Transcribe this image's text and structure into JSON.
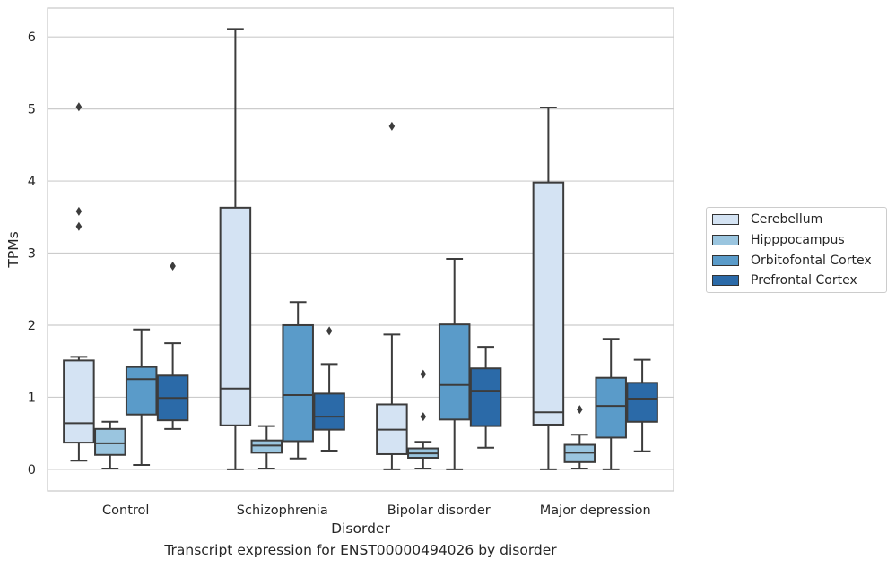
{
  "caption": "Transcript expression for ENST00000494026 by disorder",
  "chart_data": {
    "type": "box",
    "xlabel": "Disorder",
    "ylabel": "TPMs",
    "ylim": [
      -0.3,
      6.4
    ],
    "yticks": [
      0,
      1,
      2,
      3,
      4,
      5,
      6
    ],
    "grid": "horizontal",
    "legend_position": "right",
    "categories": [
      "Control",
      "Schizophrenia",
      "Bipolar disorder",
      "Major depression"
    ],
    "series": [
      {
        "name": "Cerebellum",
        "color": "#d4e3f3",
        "boxes": [
          {
            "whisker_low": 0.12,
            "q1": 0.37,
            "median": 0.64,
            "q3": 1.51,
            "whisker_high": 1.56,
            "outliers": [
              3.37,
              3.58,
              5.03
            ]
          },
          {
            "whisker_low": 0.0,
            "q1": 0.61,
            "median": 1.12,
            "q3": 3.63,
            "whisker_high": 6.11,
            "outliers": []
          },
          {
            "whisker_low": 0.0,
            "q1": 0.21,
            "median": 0.55,
            "q3": 0.9,
            "whisker_high": 1.87,
            "outliers": [
              4.76
            ]
          },
          {
            "whisker_low": 0.0,
            "q1": 0.62,
            "median": 0.79,
            "q3": 3.98,
            "whisker_high": 5.02,
            "outliers": []
          }
        ]
      },
      {
        "name": "Hipppocampus",
        "color": "#9ac5df",
        "boxes": [
          {
            "whisker_low": 0.01,
            "q1": 0.2,
            "median": 0.36,
            "q3": 0.56,
            "whisker_high": 0.66,
            "outliers": []
          },
          {
            "whisker_low": 0.01,
            "q1": 0.23,
            "median": 0.33,
            "q3": 0.4,
            "whisker_high": 0.6,
            "outliers": []
          },
          {
            "whisker_low": 0.01,
            "q1": 0.16,
            "median": 0.22,
            "q3": 0.29,
            "whisker_high": 0.38,
            "outliers": [
              0.73,
              1.32
            ]
          },
          {
            "whisker_low": 0.01,
            "q1": 0.1,
            "median": 0.23,
            "q3": 0.34,
            "whisker_high": 0.48,
            "outliers": [
              0.83
            ]
          }
        ]
      },
      {
        "name": "Orbitofontal Cortex",
        "color": "#5a9bc9",
        "boxes": [
          {
            "whisker_low": 0.06,
            "q1": 0.76,
            "median": 1.25,
            "q3": 1.42,
            "whisker_high": 1.94,
            "outliers": []
          },
          {
            "whisker_low": 0.15,
            "q1": 0.39,
            "median": 1.03,
            "q3": 2.0,
            "whisker_high": 2.32,
            "outliers": []
          },
          {
            "whisker_low": 0.0,
            "q1": 0.69,
            "median": 1.17,
            "q3": 2.01,
            "whisker_high": 2.92,
            "outliers": []
          },
          {
            "whisker_low": 0.0,
            "q1": 0.44,
            "median": 0.88,
            "q3": 1.27,
            "whisker_high": 1.81,
            "outliers": []
          }
        ]
      },
      {
        "name": "Prefrontal Cortex",
        "color": "#2b6aa8",
        "boxes": [
          {
            "whisker_low": 0.56,
            "q1": 0.68,
            "median": 0.99,
            "q3": 1.3,
            "whisker_high": 1.75,
            "outliers": [
              2.82
            ]
          },
          {
            "whisker_low": 0.26,
            "q1": 0.55,
            "median": 0.73,
            "q3": 1.05,
            "whisker_high": 1.46,
            "outliers": [
              1.92
            ]
          },
          {
            "whisker_low": 0.3,
            "q1": 0.6,
            "median": 1.09,
            "q3": 1.4,
            "whisker_high": 1.7,
            "outliers": []
          },
          {
            "whisker_low": 0.25,
            "q1": 0.66,
            "median": 0.98,
            "q3": 1.2,
            "whisker_high": 1.52,
            "outliers": []
          }
        ]
      }
    ]
  }
}
